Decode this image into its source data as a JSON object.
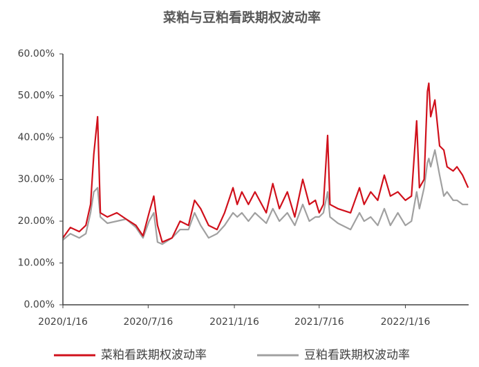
{
  "chart_data": {
    "type": "line",
    "title": "菜粕与豆粕看跌期权波动率",
    "x": [
      "2020/1/16",
      "2020/2/1",
      "2020/2/20",
      "2020/3/5",
      "2020/3/15",
      "2020/3/22",
      "2020/3/30",
      "2020/4/5",
      "2020/4/20",
      "2020/5/10",
      "2020/5/30",
      "2020/6/20",
      "2020/7/5",
      "2020/7/18",
      "2020/7/28",
      "2020/8/5",
      "2020/8/15",
      "2020/9/5",
      "2020/9/22",
      "2020/10/10",
      "2020/10/23",
      "2020/11/5",
      "2020/11/22",
      "2020/12/10",
      "2020/12/26",
      "2021/1/13",
      "2021/1/22",
      "2021/2/1",
      "2021/2/15",
      "2021/3/1",
      "2021/3/25",
      "2021/4/8",
      "2021/4/22",
      "2021/5/9",
      "2021/5/25",
      "2021/6/11",
      "2021/6/25",
      "2021/7/8",
      "2021/7/16",
      "2021/7/25",
      "2021/8/3",
      "2021/8/8",
      "2021/8/25",
      "2021/9/21",
      "2021/10/10",
      "2021/10/20",
      "2021/11/3",
      "2021/11/18",
      "2021/12/2",
      "2021/12/15",
      "2021/12/31",
      "2022/1/16",
      "2022/1/29",
      "2022/2/9",
      "2022/2/15",
      "2022/2/25",
      "2022/3/4",
      "2022/3/7",
      "2022/3/11",
      "2022/3/20",
      "2022/3/30",
      "2022/4/8",
      "2022/4/15",
      "2022/4/28",
      "2022/5/6",
      "2022/5/18",
      "2022/5/30"
    ],
    "series": [
      {
        "name": "菜粕看跌期权波动率",
        "color": "#d0101b",
        "values": [
          16,
          18.5,
          17.5,
          19,
          24,
          36,
          45,
          22,
          21,
          22,
          20.5,
          19,
          16.5,
          22,
          26,
          19,
          15,
          16,
          20,
          19,
          25,
          23,
          19,
          18,
          22,
          28,
          24,
          27,
          24,
          27,
          22,
          29,
          23,
          27,
          21,
          30,
          24,
          25,
          22,
          24,
          40.5,
          24,
          23,
          22,
          28,
          24,
          27,
          25,
          31,
          26,
          27,
          25,
          26,
          44,
          28,
          30,
          51,
          53,
          45,
          49,
          38,
          37,
          33,
          32,
          33,
          31,
          28
        ]
      },
      {
        "name": "豆粕看跌期权波动率",
        "color": "#a0a0a0",
        "values": [
          15.5,
          17,
          16,
          17,
          22,
          27,
          28,
          21,
          19.5,
          20,
          20.5,
          18.5,
          16,
          20,
          22,
          15,
          14.5,
          16,
          18,
          18,
          22,
          19,
          16,
          17,
          19,
          22,
          21,
          22,
          20,
          22,
          19.5,
          23,
          20,
          22,
          19,
          24,
          20,
          21,
          21,
          22,
          27,
          21,
          19.5,
          18,
          22,
          20,
          21,
          19,
          23,
          19,
          22,
          19,
          20,
          27,
          23,
          28,
          34,
          35,
          33,
          37,
          31,
          26,
          27,
          25,
          25,
          24,
          24
        ]
      }
    ],
    "xlim": [
      "2020/1/16",
      "2022/5/31"
    ],
    "xticks": [
      "2020/1/16",
      "2020/7/16",
      "2021/1/16",
      "2021/7/16",
      "2022/1/16"
    ],
    "ylim": [
      0,
      60
    ],
    "yticks": [
      {
        "value": 0,
        "label": "0.00%"
      },
      {
        "value": 10,
        "label": "10.00%"
      },
      {
        "value": 20,
        "label": "20.00%"
      },
      {
        "value": 30,
        "label": "30.00%"
      },
      {
        "value": 40,
        "label": "40.00%"
      },
      {
        "value": 50,
        "label": "50.00%"
      },
      {
        "value": 60,
        "label": "60.00%"
      }
    ],
    "grid": false
  }
}
